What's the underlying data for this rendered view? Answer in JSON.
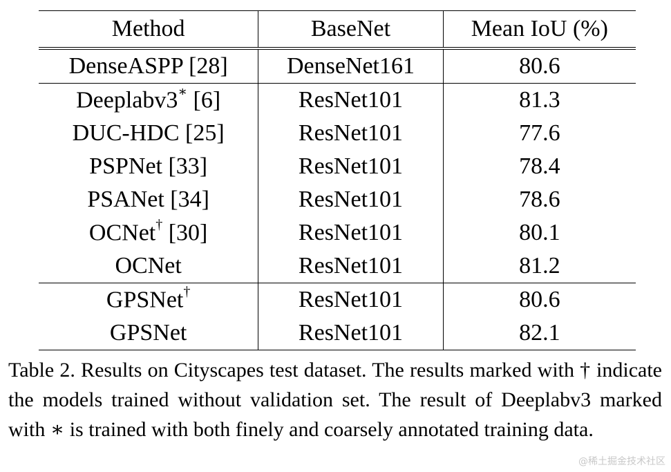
{
  "table": {
    "headers": [
      "Method",
      "BaseNet",
      "Mean IoU (%)"
    ],
    "groups": [
      [
        {
          "method": "DenseASPP [28]",
          "basenet": "DenseNet161",
          "miou": "80.6"
        }
      ],
      [
        {
          "method": "Deeplabv3",
          "mark": "∗",
          "ref": " [6]",
          "basenet": "ResNet101",
          "miou": "81.3"
        },
        {
          "method": "DUC-HDC [25]",
          "basenet": "ResNet101",
          "miou": "77.6"
        },
        {
          "method": "PSPNet [33]",
          "basenet": "ResNet101",
          "miou": "78.4"
        },
        {
          "method": "PSANet [34]",
          "basenet": "ResNet101",
          "miou": "78.6"
        },
        {
          "method": "OCNet",
          "mark": "†",
          "ref": " [30]",
          "basenet": "ResNet101",
          "miou": "80.1"
        },
        {
          "method": "OCNet",
          "basenet": "ResNet101",
          "miou": "81.2"
        }
      ],
      [
        {
          "method": "GPSNet",
          "mark": "†",
          "basenet": "ResNet101",
          "miou": "80.6"
        },
        {
          "method": "GPSNet",
          "basenet": "ResNet101",
          "miou": "82.1",
          "best": true
        }
      ]
    ]
  },
  "caption": "Table 2. Results on Cityscapes test dataset.  The results marked with † indicate the models trained without validation set. The result of Deeplabv3 marked with ∗ is trained with both finely and coarsely annotated training data.",
  "watermark": "@稀土掘金技术社区"
}
